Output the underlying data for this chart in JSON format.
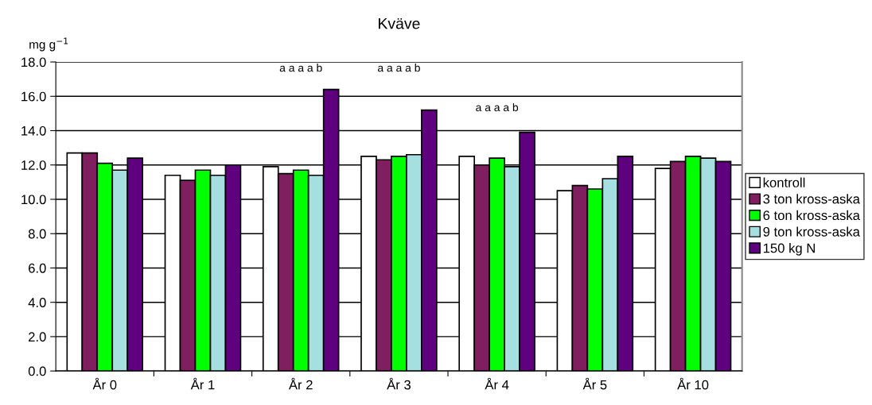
{
  "chart_data": {
    "type": "bar",
    "title": "Kväve",
    "ylabel": "mg g$^{−1}$",
    "categories": [
      "År 0",
      "År 1",
      "År 2",
      "År 3",
      "År 4",
      "År 5",
      "År 10"
    ],
    "series": [
      {
        "name": "kontroll",
        "color": "#ffffff",
        "values": [
          12.7,
          11.4,
          11.9,
          12.5,
          12.5,
          10.5,
          11.8
        ]
      },
      {
        "name": "3 ton kross-aska",
        "color": "#7f1f5f",
        "values": [
          12.7,
          11.1,
          11.5,
          12.3,
          12.0,
          10.8,
          12.2
        ]
      },
      {
        "name": "6 ton kross-aska",
        "color": "#00ff00",
        "values": [
          12.1,
          11.7,
          11.7,
          12.5,
          12.4,
          10.6,
          12.5
        ]
      },
      {
        "name": "9 ton kross-aska",
        "color": "#a6dfe0",
        "values": [
          11.7,
          11.4,
          11.4,
          12.6,
          11.9,
          11.2,
          12.4
        ]
      },
      {
        "name": "150 kg N",
        "color": "#5f007f",
        "values": [
          12.4,
          12.0,
          16.4,
          15.2,
          13.9,
          12.5,
          12.2
        ]
      }
    ],
    "ylim": [
      0,
      18
    ],
    "yticks": [
      {
        "value": 0,
        "label": "0.0"
      },
      {
        "value": 2,
        "label": "2.0"
      },
      {
        "value": 4,
        "label": "4.0"
      },
      {
        "value": 6,
        "label": "6.0"
      },
      {
        "value": 8,
        "label": "8.0"
      },
      {
        "value": 10,
        "label": "10.0"
      },
      {
        "value": 12,
        "label": "12.0"
      },
      {
        "value": 14,
        "label": "14.0"
      },
      {
        "value": 16,
        "label": "16.0"
      },
      {
        "value": 18,
        "label": "18.0"
      }
    ],
    "annotations": [
      "a a a a b",
      "a a a a b",
      "a a a a b"
    ],
    "grid": "y",
    "legend": "right"
  }
}
